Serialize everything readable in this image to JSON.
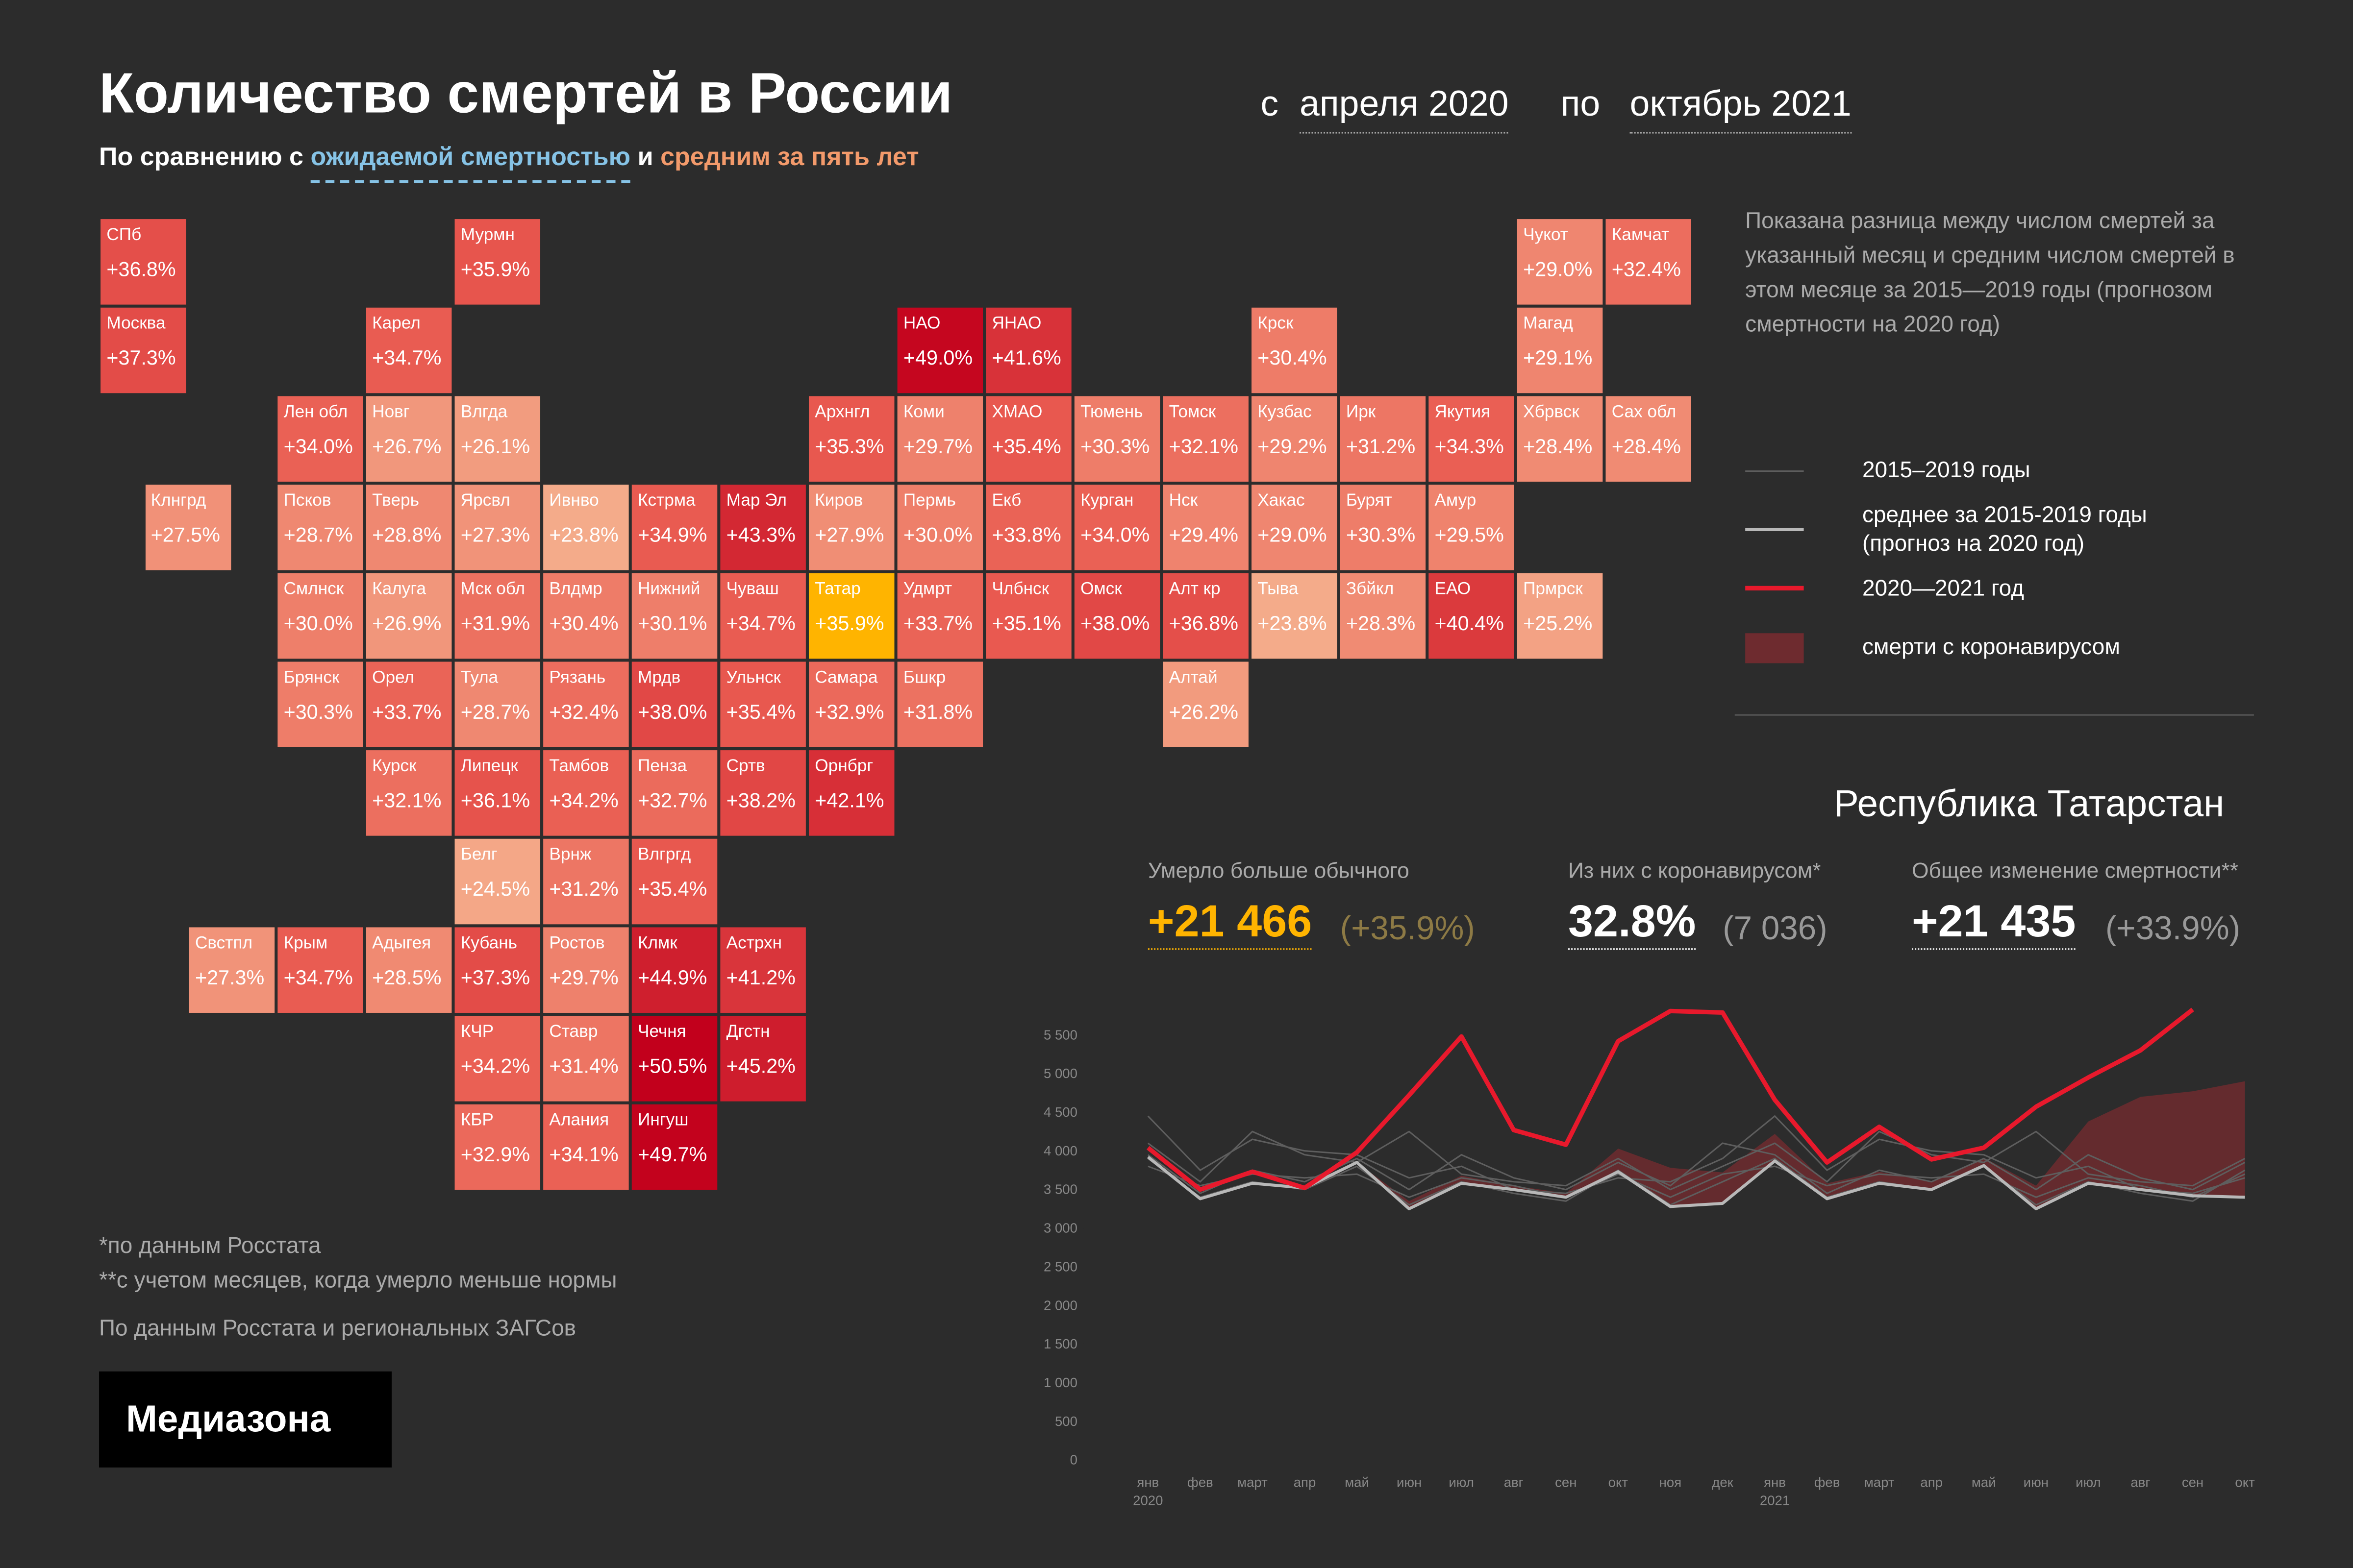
{
  "header": {
    "title": "Количество смертей в России",
    "subtitle": [
      "По сравнению с ",
      "ожидаемой смертностью",
      " и ",
      "средним за пять лет"
    ],
    "date_from_prefix": "с",
    "date_from": "апреля 2020",
    "date_to_prefix": "по",
    "date_to": "октябрь 2021"
  },
  "note": "Показана разница между числом смертей за указанный месяц и средним числом смертей в этом месяце за 2015—2019 годы (прогнозом смертности на 2020 год)",
  "tile_map": {
    "color_scale": {
      "domain": [
        24,
        35,
        50
      ],
      "range": [
        "#f4ab8a",
        "#e95a50",
        "#c2001c"
      ]
    },
    "tiles": [
      {
        "label": "СПб",
        "value": 36.8,
        "value_label": "+36.8%"
      },
      {
        "label": "Мурмн",
        "value": 35.9,
        "value_label": "+35.9%"
      },
      {
        "label": "Чукот",
        "value": 29.0,
        "value_label": "+29.0%"
      },
      {
        "label": "Камчат",
        "value": 32.4,
        "value_label": "+32.4%"
      },
      {
        "label": "Москва",
        "value": 37.3,
        "value_label": "+37.3%"
      },
      {
        "label": "Карел",
        "value": 34.7,
        "value_label": "+34.7%"
      },
      {
        "label": "НАО",
        "value": 49.0,
        "value_label": "+49.0%"
      },
      {
        "label": "ЯНАО",
        "value": 41.6,
        "value_label": "+41.6%"
      },
      {
        "label": "Крск",
        "value": 30.4,
        "value_label": "+30.4%"
      },
      {
        "label": "Магад",
        "value": 29.1,
        "value_label": "+29.1%"
      },
      {
        "label": "Лен обл",
        "value": 34.0,
        "value_label": "+34.0%"
      },
      {
        "label": "Новг",
        "value": 26.7,
        "value_label": "+26.7%"
      },
      {
        "label": "Влгда",
        "value": 26.1,
        "value_label": "+26.1%"
      },
      {
        "label": "Архнгл",
        "value": 35.3,
        "value_label": "+35.3%"
      },
      {
        "label": "Коми",
        "value": 29.7,
        "value_label": "+29.7%"
      },
      {
        "label": "ХМАО",
        "value": 35.4,
        "value_label": "+35.4%"
      },
      {
        "label": "Тюмень",
        "value": 30.3,
        "value_label": "+30.3%"
      },
      {
        "label": "Томск",
        "value": 32.1,
        "value_label": "+32.1%"
      },
      {
        "label": "Кузбас",
        "value": 29.2,
        "value_label": "+29.2%"
      },
      {
        "label": "Ирк",
        "value": 31.2,
        "value_label": "+31.2%"
      },
      {
        "label": "Якутия",
        "value": 34.3,
        "value_label": "+34.3%"
      },
      {
        "label": "Хбрвск",
        "value": 28.4,
        "value_label": "+28.4%"
      },
      {
        "label": "Сах обл",
        "value": 28.4,
        "value_label": "+28.4%"
      },
      {
        "label": "Клнгрд",
        "value": 27.5,
        "value_label": "+27.5%"
      },
      {
        "label": "Псков",
        "value": 28.7,
        "value_label": "+28.7%"
      },
      {
        "label": "Тверь",
        "value": 28.8,
        "value_label": "+28.8%"
      },
      {
        "label": "Ярсвл",
        "value": 27.3,
        "value_label": "+27.3%"
      },
      {
        "label": "Ивнво",
        "value": 23.8,
        "value_label": "+23.8%"
      },
      {
        "label": "Кстрма",
        "value": 34.9,
        "value_label": "+34.9%"
      },
      {
        "label": "Мар Эл",
        "value": 43.3,
        "value_label": "+43.3%"
      },
      {
        "label": "Киров",
        "value": 27.9,
        "value_label": "+27.9%"
      },
      {
        "label": "Пермь",
        "value": 30.0,
        "value_label": "+30.0%"
      },
      {
        "label": "Екб",
        "value": 33.8,
        "value_label": "+33.8%"
      },
      {
        "label": "Курган",
        "value": 34.0,
        "value_label": "+34.0%"
      },
      {
        "label": "Нск",
        "value": 29.4,
        "value_label": "+29.4%"
      },
      {
        "label": "Хакас",
        "value": 29.0,
        "value_label": "+29.0%"
      },
      {
        "label": "Бурят",
        "value": 30.3,
        "value_label": "+30.3%"
      },
      {
        "label": "Амур",
        "value": 29.5,
        "value_label": "+29.5%"
      },
      {
        "label": "Смлнск",
        "value": 30.0,
        "value_label": "+30.0%"
      },
      {
        "label": "Калуга",
        "value": 26.9,
        "value_label": "+26.9%"
      },
      {
        "label": "Мск обл",
        "value": 31.9,
        "value_label": "+31.9%"
      },
      {
        "label": "Влдмр",
        "value": 30.4,
        "value_label": "+30.4%"
      },
      {
        "label": "Нижний",
        "value": 30.1,
        "value_label": "+30.1%"
      },
      {
        "label": "Чуваш",
        "value": 34.7,
        "value_label": "+34.7%"
      },
      {
        "label": "Татар",
        "value": 35.9,
        "value_label": "+35.9%",
        "color": "#ffb400"
      },
      {
        "label": "Удмрт",
        "value": 33.7,
        "value_label": "+33.7%"
      },
      {
        "label": "Члбнск",
        "value": 35.1,
        "value_label": "+35.1%"
      },
      {
        "label": "Омск",
        "value": 38.0,
        "value_label": "+38.0%"
      },
      {
        "label": "Алт кр",
        "value": 36.8,
        "value_label": "+36.8%"
      },
      {
        "label": "Тыва",
        "value": 23.8,
        "value_label": "+23.8%"
      },
      {
        "label": "Збйкл",
        "value": 28.3,
        "value_label": "+28.3%"
      },
      {
        "label": "ЕАО",
        "value": 40.4,
        "value_label": "+40.4%"
      },
      {
        "label": "Прмрск",
        "value": 25.2,
        "value_label": "+25.2%"
      },
      {
        "label": "Брянск",
        "value": 30.3,
        "value_label": "+30.3%"
      },
      {
        "label": "Орел",
        "value": 33.7,
        "value_label": "+33.7%"
      },
      {
        "label": "Тула",
        "value": 28.7,
        "value_label": "+28.7%"
      },
      {
        "label": "Рязань",
        "value": 32.4,
        "value_label": "+32.4%"
      },
      {
        "label": "Мрдв",
        "value": 38.0,
        "value_label": "+38.0%"
      },
      {
        "label": "Ульнск",
        "value": 35.4,
        "value_label": "+35.4%"
      },
      {
        "label": "Самара",
        "value": 32.9,
        "value_label": "+32.9%"
      },
      {
        "label": "Бшкр",
        "value": 31.8,
        "value_label": "+31.8%"
      },
      {
        "label": "Алтай",
        "value": 26.2,
        "value_label": "+26.2%"
      },
      {
        "label": "Курск",
        "value": 32.1,
        "value_label": "+32.1%"
      },
      {
        "label": "Липецк",
        "value": 36.1,
        "value_label": "+36.1%"
      },
      {
        "label": "Тамбов",
        "value": 34.2,
        "value_label": "+34.2%"
      },
      {
        "label": "Пенза",
        "value": 32.7,
        "value_label": "+32.7%"
      },
      {
        "label": "Сртв",
        "value": 38.2,
        "value_label": "+38.2%"
      },
      {
        "label": "Орнбрг",
        "value": 42.1,
        "value_label": "+42.1%"
      },
      {
        "label": "Белг",
        "value": 24.5,
        "value_label": "+24.5%"
      },
      {
        "label": "Врнж",
        "value": 31.2,
        "value_label": "+31.2%"
      },
      {
        "label": "Влгргд",
        "value": 35.4,
        "value_label": "+35.4%"
      },
      {
        "label": "Свстпл",
        "value": 27.3,
        "value_label": "+27.3%"
      },
      {
        "label": "Крым",
        "value": 34.7,
        "value_label": "+34.7%"
      },
      {
        "label": "Адыгея",
        "value": 28.5,
        "value_label": "+28.5%"
      },
      {
        "label": "Кубань",
        "value": 37.3,
        "value_label": "+37.3%"
      },
      {
        "label": "Ростов",
        "value": 29.7,
        "value_label": "+29.7%"
      },
      {
        "label": "Клмк",
        "value": 44.9,
        "value_label": "+44.9%"
      },
      {
        "label": "Астрхн",
        "value": 41.2,
        "value_label": "+41.2%"
      },
      {
        "label": "КЧР",
        "value": 34.2,
        "value_label": "+34.2%"
      },
      {
        "label": "Ставр",
        "value": 31.4,
        "value_label": "+31.4%"
      },
      {
        "label": "Чечня",
        "value": 50.5,
        "value_label": "+50.5%"
      },
      {
        "label": "Дгстн",
        "value": 45.2,
        "value_label": "+45.2%"
      },
      {
        "label": "КБР",
        "value": 32.9,
        "value_label": "+32.9%"
      },
      {
        "label": "Алания",
        "value": 34.1,
        "value_label": "+34.1%"
      },
      {
        "label": "Ингуш",
        "value": 49.7,
        "value_label": "+49.7%"
      }
    ]
  },
  "region": {
    "title": "Республика Татарстан",
    "stats": [
      {
        "label": "Умерло больше обычного",
        "value": "+21 466",
        "detail": "(+35.9%)"
      },
      {
        "label": "Из них с коронавирусом*",
        "value": "32.8%",
        "detail": "(7 036)"
      },
      {
        "label": "Общее изменение смертности**",
        "value": "+21 435",
        "detail": "(+33.9%)"
      }
    ]
  },
  "footnotes": [
    "*по данным Росстата",
    "**с учетом месяцев, когда умерло меньше нормы"
  ],
  "source": "По данным Росстата и региональных ЗАГСов",
  "logo": "Медиазона",
  "chart_data": {
    "type": "line",
    "categories": [
      "янв",
      "фев",
      "март",
      "апр",
      "май",
      "июн",
      "июл",
      "авг",
      "сен",
      "окт",
      "ноя",
      "дек",
      "янв",
      "фев",
      "март",
      "апр",
      "май",
      "июн",
      "июл",
      "авг",
      "сен",
      "окт"
    ],
    "x_sublabels": [
      "2020",
      null,
      null,
      null,
      null,
      null,
      null,
      null,
      null,
      null,
      null,
      null,
      "2021",
      null,
      null,
      null,
      null,
      null,
      null,
      null,
      null,
      null
    ],
    "ylim": [
      0,
      6000
    ],
    "yticks": [
      0,
      500,
      {
        "value": 1000,
        "label": "1 000"
      },
      {
        "value": 1500,
        "label": "1 500"
      },
      {
        "value": 2000,
        "label": "2 000"
      },
      {
        "value": 2500,
        "label": "2 500"
      },
      {
        "value": 3000,
        "label": "3 000"
      },
      {
        "value": 3500,
        "label": "3 500"
      },
      {
        "value": 4000,
        "label": "4 000"
      },
      {
        "value": 4500,
        "label": "4 500"
      },
      {
        "value": 5000,
        "label": "5 000"
      },
      {
        "value": 5500,
        "label": "5 500"
      }
    ],
    "series": [
      {
        "name": "2015–2019 годы",
        "color": "#5e5e5e",
        "lines": [
          [
            4450,
            3750,
            4150,
            4000,
            3950,
            3650,
            3800,
            3500,
            3450,
            3650,
            3600,
            3900,
            4450,
            3750,
            4150,
            4000,
            3950,
            3650,
            3800,
            3500,
            3450,
            3650
          ],
          [
            4100,
            3600,
            4250,
            3950,
            3850,
            4250,
            3700,
            3600,
            3550,
            3900,
            3500,
            3800,
            4100,
            3600,
            4250,
            3950,
            3850,
            4250,
            3700,
            3600,
            3550,
            3900
          ],
          [
            3950,
            3450,
            3750,
            3600,
            3900,
            3500,
            3950,
            3650,
            3500,
            3850,
            3550,
            4100,
            3950,
            3450,
            3750,
            3600,
            3900,
            3500,
            3950,
            3650,
            3500,
            3850
          ],
          [
            3800,
            3550,
            3700,
            3650,
            3700,
            3400,
            3650,
            3550,
            3400,
            3700,
            3400,
            3700,
            3800,
            3550,
            3700,
            3650,
            3700,
            3400,
            3650,
            3550,
            3400,
            3700
          ],
          [
            3900,
            3400,
            3600,
            3500,
            3800,
            3300,
            3600,
            3450,
            3350,
            3750,
            3300,
            3600,
            3900,
            3400,
            3600,
            3500,
            3800,
            3300,
            3600,
            3450,
            3350,
            3750
          ]
        ]
      },
      {
        "name": "среднее за 2015-2019 годы\n(прогноз на 2020 год)",
        "color": "#b8b8b8",
        "values": [
          3920,
          3380,
          3580,
          3520,
          3850,
          3250,
          3580,
          3500,
          3400,
          3730,
          3280,
          3320,
          3870,
          3380,
          3580,
          3500,
          3810,
          3250,
          3580,
          3500,
          3420,
          3400
        ]
      },
      {
        "name": "2020—2021 год",
        "color": "#e8192c",
        "values": [
          4040,
          3500,
          3730,
          3520,
          3980,
          4720,
          5480,
          4270,
          4080,
          5420,
          5810,
          5790,
          4660,
          3850,
          4310,
          3890,
          4040,
          4570,
          4950,
          5300,
          5830,
          null
        ]
      },
      {
        "name": "смерти с коронавирусом",
        "color": "#6e2b2f",
        "type": "area",
        "values": [
          0,
          0,
          0,
          0,
          0,
          100,
          100,
          50,
          50,
          300,
          500,
          400,
          350,
          200,
          150,
          100,
          100,
          300,
          800,
          1200,
          1350,
          1500
        ]
      }
    ]
  }
}
